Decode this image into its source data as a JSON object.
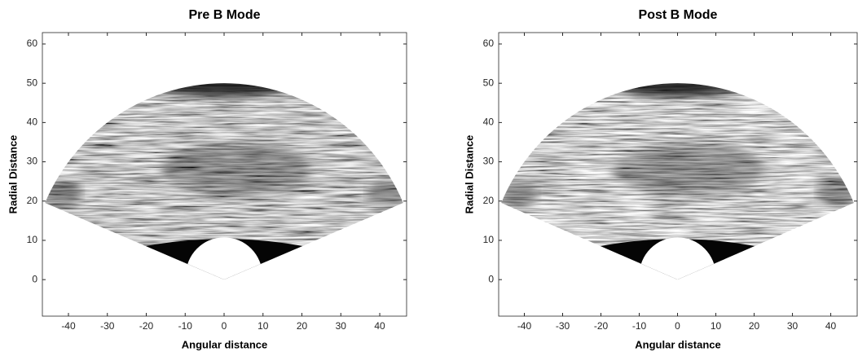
{
  "chart_data": [
    {
      "type": "image",
      "title": "Pre B Mode",
      "xlabel": "Angular distance",
      "ylabel": "Radial Distance",
      "xlim": [
        -46.7,
        46.9
      ],
      "ylim": [
        -9.3,
        62.9
      ],
      "xticks": [
        -40,
        -30,
        -20,
        -10,
        0,
        10,
        20,
        30,
        40
      ],
      "yticks": [
        0,
        10,
        20,
        30,
        40,
        50,
        60
      ]
    },
    {
      "type": "image",
      "title": "Post B Mode",
      "xlabel": "Angular distance",
      "ylabel": "Radial Distance",
      "xlim": [
        -46.7,
        46.9
      ],
      "ylim": [
        -9.3,
        62.9
      ],
      "xticks": [
        -40,
        -30,
        -20,
        -10,
        0,
        10,
        20,
        30,
        40
      ],
      "yticks": [
        0,
        10,
        20,
        30,
        40,
        50,
        60
      ]
    }
  ]
}
